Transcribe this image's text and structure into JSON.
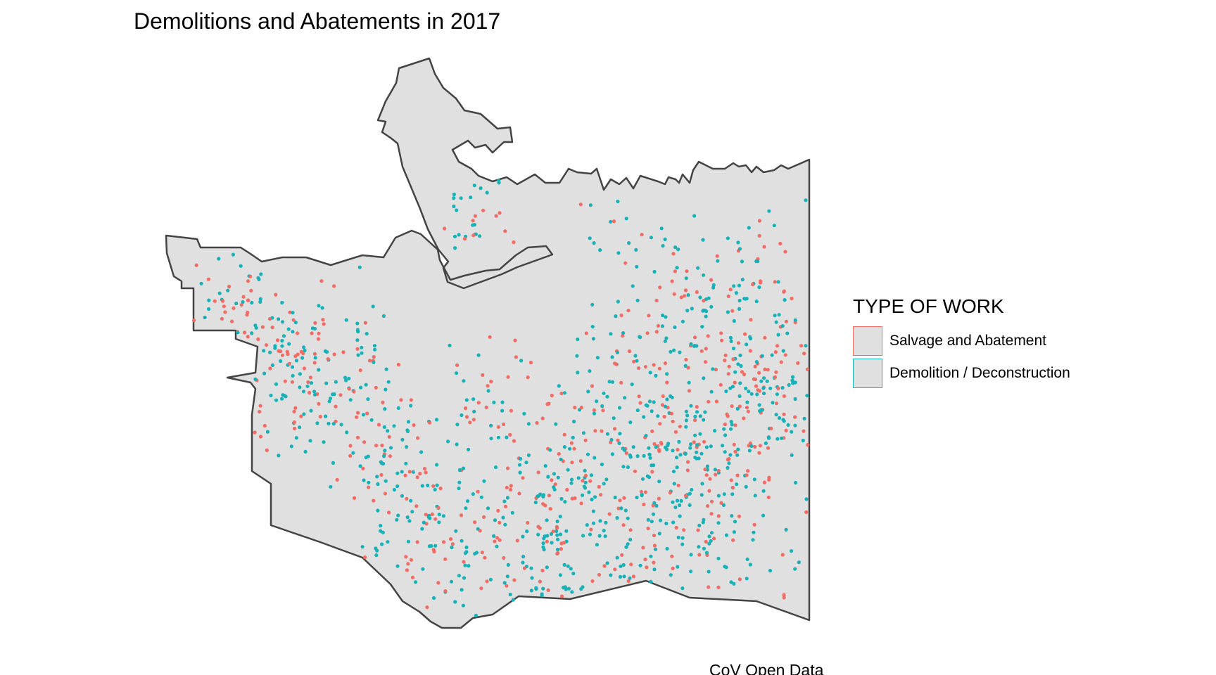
{
  "title": "Demolitions and Abatements in 2017",
  "caption": "CoV Open Data",
  "map": {
    "fill": "#e0e0e0",
    "border": "#444444"
  },
  "legend": {
    "title": "TYPE OF WORK",
    "items": [
      {
        "label": "Salvage and Abatement",
        "color": "#f26b64"
      },
      {
        "label": "Demolition / Deconstruction",
        "color": "#17b1b8"
      }
    ]
  }
}
